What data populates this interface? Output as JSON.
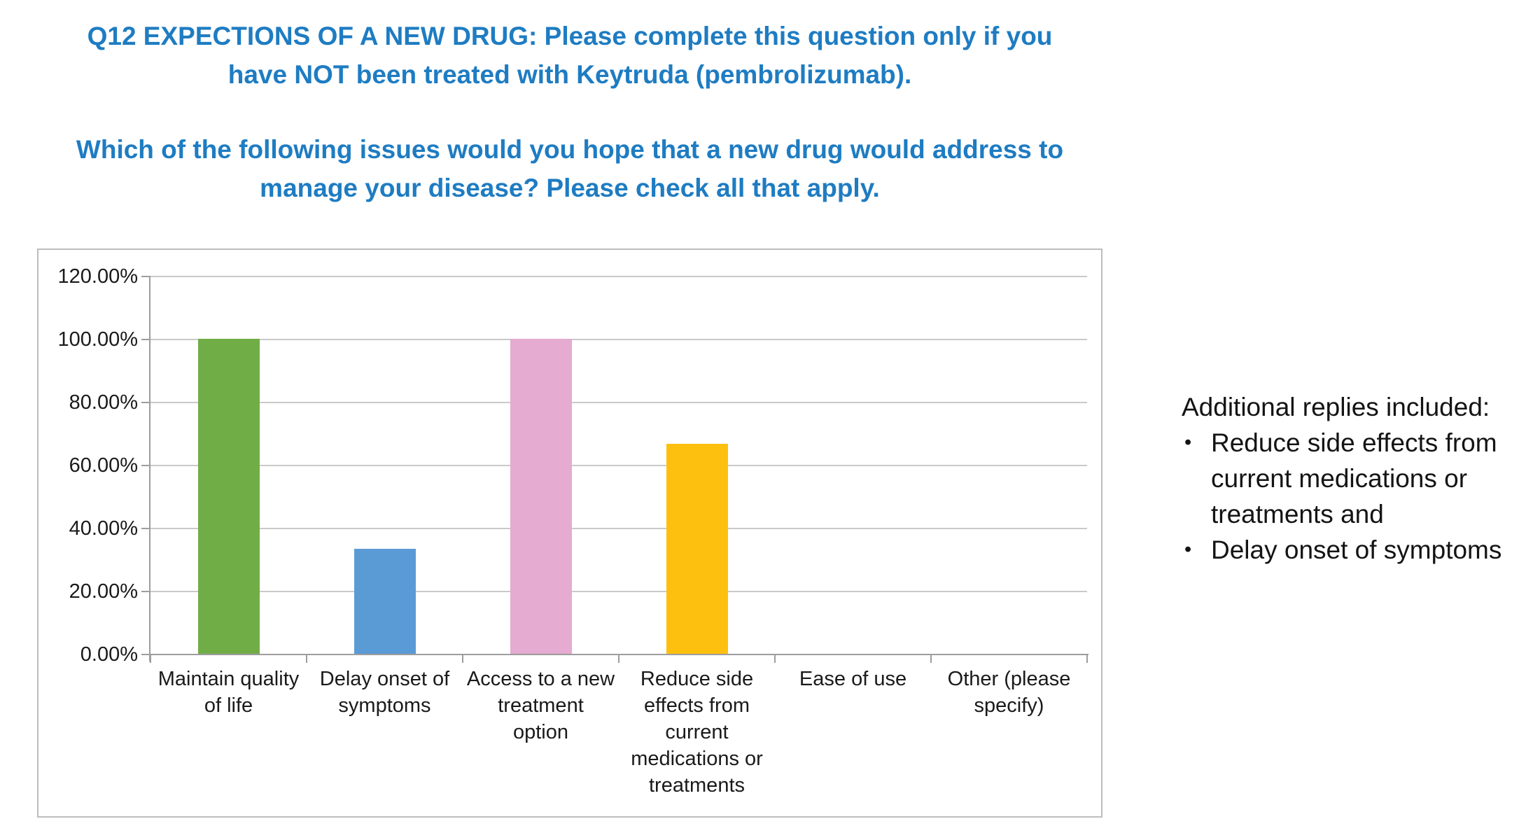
{
  "title": {
    "color": "#1e7cc2",
    "paragraphs": [
      [
        "Q12 EXPECTIONS OF A NEW DRUG: Please complete this question only if you",
        "have NOT been treated with Keytruda (pembrolizumab)."
      ],
      [
        "Which of the following issues would you hope that a new drug would address to",
        "manage your disease? Please check all that apply."
      ]
    ],
    "full_text_1": "Q12 EXPECTIONS OF A NEW DRUG: Please complete this question only if you have NOT been treated with Keytruda (pembrolizumab).",
    "full_text_2": "Which of the following issues would you hope that a new drug would address to manage your disease? Please check all that apply."
  },
  "chart_data": {
    "type": "bar",
    "title": "",
    "xlabel": "",
    "ylabel": "",
    "categories": [
      "Maintain quality of life",
      "Delay onset of symptoms",
      "Access to a new treatment option",
      "Reduce side effects from current medications or treatments",
      "Ease of use",
      "Other (please specify)"
    ],
    "category_label_lines": [
      [
        "Maintain quality",
        "of life"
      ],
      [
        "Delay onset of",
        "symptoms"
      ],
      [
        "Access to a new",
        "treatment",
        "option"
      ],
      [
        "Reduce side",
        "effects from",
        "current",
        "medications or",
        "treatments"
      ],
      [
        "Ease of use"
      ],
      [
        "Other (please",
        "specify)"
      ]
    ],
    "values": [
      100.0,
      33.33,
      100.0,
      66.67,
      0.0,
      0.0
    ],
    "bar_colors": [
      "#70ad47",
      "#5b9bd5",
      "#e5abd0",
      "#fec00f",
      "",
      ""
    ],
    "ylim": [
      0,
      120
    ],
    "yticks": [
      0,
      20,
      40,
      60,
      80,
      100,
      120
    ],
    "ytick_labels": [
      "0.00%",
      "20.00%",
      "40.00%",
      "60.00%",
      "80.00%",
      "100.00%",
      "120.00%"
    ],
    "grid": true,
    "legend": "none"
  },
  "annotation": {
    "heading": "Additional replies included:",
    "bullet_char": "•",
    "items": [
      "Reduce side effects from current medications or treatments and",
      "Delay onset of symptoms"
    ]
  }
}
